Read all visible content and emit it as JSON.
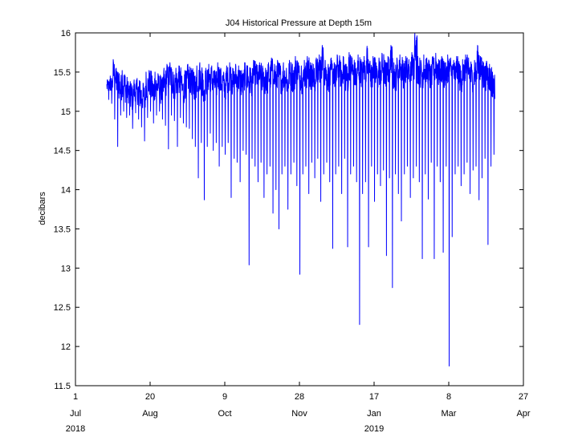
{
  "chart_data": {
    "type": "line",
    "title": "J04 Historical Pressure at Depth 15m",
    "xlabel": "",
    "ylabel": "decibars",
    "ylim": [
      11.5,
      16
    ],
    "xlim": [
      "2018-07-01",
      "2019-04-27"
    ],
    "yticks": [
      "11.5",
      "12",
      "12.5",
      "13",
      "13.5",
      "14",
      "14.5",
      "15",
      "15.5",
      "16"
    ],
    "xticks": [
      {
        "date": "2018-07-01",
        "day": "1",
        "month": "Jul",
        "year": "2018"
      },
      {
        "date": "2018-08-20",
        "day": "20",
        "month": "Aug",
        "year": ""
      },
      {
        "date": "2018-10-09",
        "day": "9",
        "month": "Oct",
        "year": ""
      },
      {
        "date": "2018-11-28",
        "day": "28",
        "month": "Nov",
        "year": ""
      },
      {
        "date": "2019-01-17",
        "day": "17",
        "month": "Jan",
        "year": "2019"
      },
      {
        "date": "2019-03-08",
        "day": "8",
        "month": "Mar",
        "year": ""
      },
      {
        "date": "2019-04-27",
        "day": "27",
        "month": "Apr",
        "year": ""
      }
    ],
    "grid": false,
    "series": [
      {
        "color": "#0000ff",
        "x": [
          "2018-07-22",
          "2018-07-24",
          "2018-07-26",
          "2018-07-28",
          "2018-07-30",
          "2018-08-01",
          "2018-08-03",
          "2018-08-05",
          "2018-08-07",
          "2018-08-09",
          "2018-08-11",
          "2018-08-13",
          "2018-08-15",
          "2018-08-17",
          "2018-08-19",
          "2018-08-21",
          "2018-08-23",
          "2018-08-25",
          "2018-08-27",
          "2018-08-29",
          "2018-08-31",
          "2018-09-02",
          "2018-09-04",
          "2018-09-06",
          "2018-09-08",
          "2018-09-10",
          "2018-09-12",
          "2018-09-14",
          "2018-09-16",
          "2018-09-18",
          "2018-09-20",
          "2018-09-22",
          "2018-09-24",
          "2018-09-26",
          "2018-09-28",
          "2018-09-30",
          "2018-10-02",
          "2018-10-04",
          "2018-10-06",
          "2018-10-08",
          "2018-10-10",
          "2018-10-12",
          "2018-10-14",
          "2018-10-16",
          "2018-10-18",
          "2018-10-20",
          "2018-10-22",
          "2018-10-24",
          "2018-10-26",
          "2018-10-28",
          "2018-10-30",
          "2018-11-01",
          "2018-11-03",
          "2018-11-05",
          "2018-11-07",
          "2018-11-09",
          "2018-11-11",
          "2018-11-13",
          "2018-11-15",
          "2018-11-17",
          "2018-11-19",
          "2018-11-21",
          "2018-11-23",
          "2018-11-25",
          "2018-11-27",
          "2018-11-29",
          "2018-12-01",
          "2018-12-03",
          "2018-12-05",
          "2018-12-07",
          "2018-12-09",
          "2018-12-11",
          "2018-12-13",
          "2018-12-15",
          "2018-12-17",
          "2018-12-19",
          "2018-12-21",
          "2018-12-23",
          "2018-12-25",
          "2018-12-27",
          "2018-12-29",
          "2018-12-31",
          "2019-01-02",
          "2019-01-04",
          "2019-01-06",
          "2019-01-08",
          "2019-01-10",
          "2019-01-12",
          "2019-01-14",
          "2019-01-16",
          "2019-01-18",
          "2019-01-20",
          "2019-01-22",
          "2019-01-24",
          "2019-01-26",
          "2019-01-28",
          "2019-01-30",
          "2019-02-01",
          "2019-02-03",
          "2019-02-05",
          "2019-02-07",
          "2019-02-09",
          "2019-02-11",
          "2019-02-13",
          "2019-02-15",
          "2019-02-17",
          "2019-02-19",
          "2019-02-21",
          "2019-02-23",
          "2019-02-25",
          "2019-02-27",
          "2019-03-01",
          "2019-03-03",
          "2019-03-05",
          "2019-03-07",
          "2019-03-09",
          "2019-03-11",
          "2019-03-13",
          "2019-03-15",
          "2019-03-17",
          "2019-03-19",
          "2019-03-21",
          "2019-03-23",
          "2019-03-25",
          "2019-03-27",
          "2019-03-29",
          "2019-03-31",
          "2019-04-02",
          "2019-04-04",
          "2019-04-06",
          "2019-04-08",
          "2019-04-10"
        ],
        "max": [
          15.4,
          15.45,
          15.66,
          15.55,
          15.48,
          15.52,
          15.45,
          15.38,
          15.35,
          15.4,
          15.42,
          15.38,
          15.36,
          15.5,
          15.52,
          15.45,
          15.5,
          15.48,
          15.44,
          15.55,
          15.6,
          15.62,
          15.5,
          15.55,
          15.58,
          15.45,
          15.52,
          15.6,
          15.55,
          15.5,
          15.58,
          15.62,
          15.48,
          15.55,
          15.6,
          15.58,
          15.52,
          15.62,
          15.55,
          15.5,
          15.58,
          15.62,
          15.55,
          15.6,
          15.58,
          15.52,
          15.62,
          15.58,
          15.55,
          15.65,
          15.6,
          15.62,
          15.58,
          15.55,
          15.62,
          15.68,
          15.6,
          15.65,
          15.58,
          15.62,
          15.55,
          15.65,
          15.6,
          15.7,
          15.62,
          15.58,
          15.65,
          15.7,
          15.62,
          15.6,
          15.68,
          15.72,
          15.84,
          15.65,
          15.6,
          15.68,
          15.62,
          15.72,
          15.65,
          15.7,
          15.6,
          15.75,
          15.68,
          15.62,
          15.72,
          15.66,
          15.7,
          15.83,
          15.64,
          15.7,
          15.62,
          15.68,
          15.74,
          15.65,
          15.7,
          15.84,
          15.62,
          15.68,
          15.72,
          15.65,
          15.7,
          15.66,
          15.75,
          16.0,
          15.7,
          15.65,
          15.72,
          15.68,
          15.6,
          15.7,
          15.74,
          15.66,
          15.7,
          15.62,
          15.72,
          15.68,
          15.65,
          15.7,
          15.6,
          15.66,
          15.72,
          15.68,
          15.6,
          15.65,
          15.84,
          15.7,
          15.62,
          15.64,
          15.6,
          15.5
        ],
        "min": [
          15.15,
          15.1,
          14.9,
          14.55,
          14.95,
          15.0,
          14.92,
          14.95,
          14.78,
          14.98,
          14.9,
          14.8,
          14.62,
          14.92,
          15.0,
          14.85,
          14.95,
          15.0,
          14.9,
          14.82,
          14.52,
          14.95,
          14.88,
          14.55,
          14.92,
          14.85,
          14.8,
          14.78,
          14.65,
          14.55,
          14.15,
          14.6,
          13.87,
          14.55,
          14.72,
          14.5,
          14.6,
          14.3,
          14.55,
          14.45,
          14.6,
          13.9,
          14.4,
          14.35,
          14.1,
          14.5,
          14.45,
          13.04,
          14.4,
          14.3,
          14.1,
          14.35,
          13.9,
          14.2,
          14.3,
          13.7,
          14.0,
          13.5,
          14.2,
          14.3,
          13.75,
          14.2,
          14.35,
          14.05,
          12.92,
          14.2,
          14.3,
          13.95,
          14.35,
          14.15,
          14.4,
          13.85,
          14.2,
          14.35,
          14.1,
          13.25,
          14.2,
          14.3,
          13.95,
          14.4,
          13.27,
          14.2,
          14.3,
          14.1,
          12.28,
          13.95,
          14.1,
          13.27,
          14.3,
          13.85,
          14.2,
          14.05,
          14.25,
          13.16,
          14.15,
          12.75,
          14.2,
          13.95,
          13.6,
          14.2,
          14.3,
          13.9,
          14.15,
          14.3,
          14.1,
          13.12,
          14.2,
          13.88,
          14.35,
          13.12,
          14.3,
          14.1,
          13.2,
          14.3,
          11.75,
          13.4,
          14.2,
          14.3,
          14.05,
          14.2,
          14.35,
          13.95,
          14.25,
          14.3,
          13.87,
          14.15,
          14.4,
          13.3,
          14.3,
          14.45,
          14.1,
          14.3
        ]
      }
    ]
  }
}
